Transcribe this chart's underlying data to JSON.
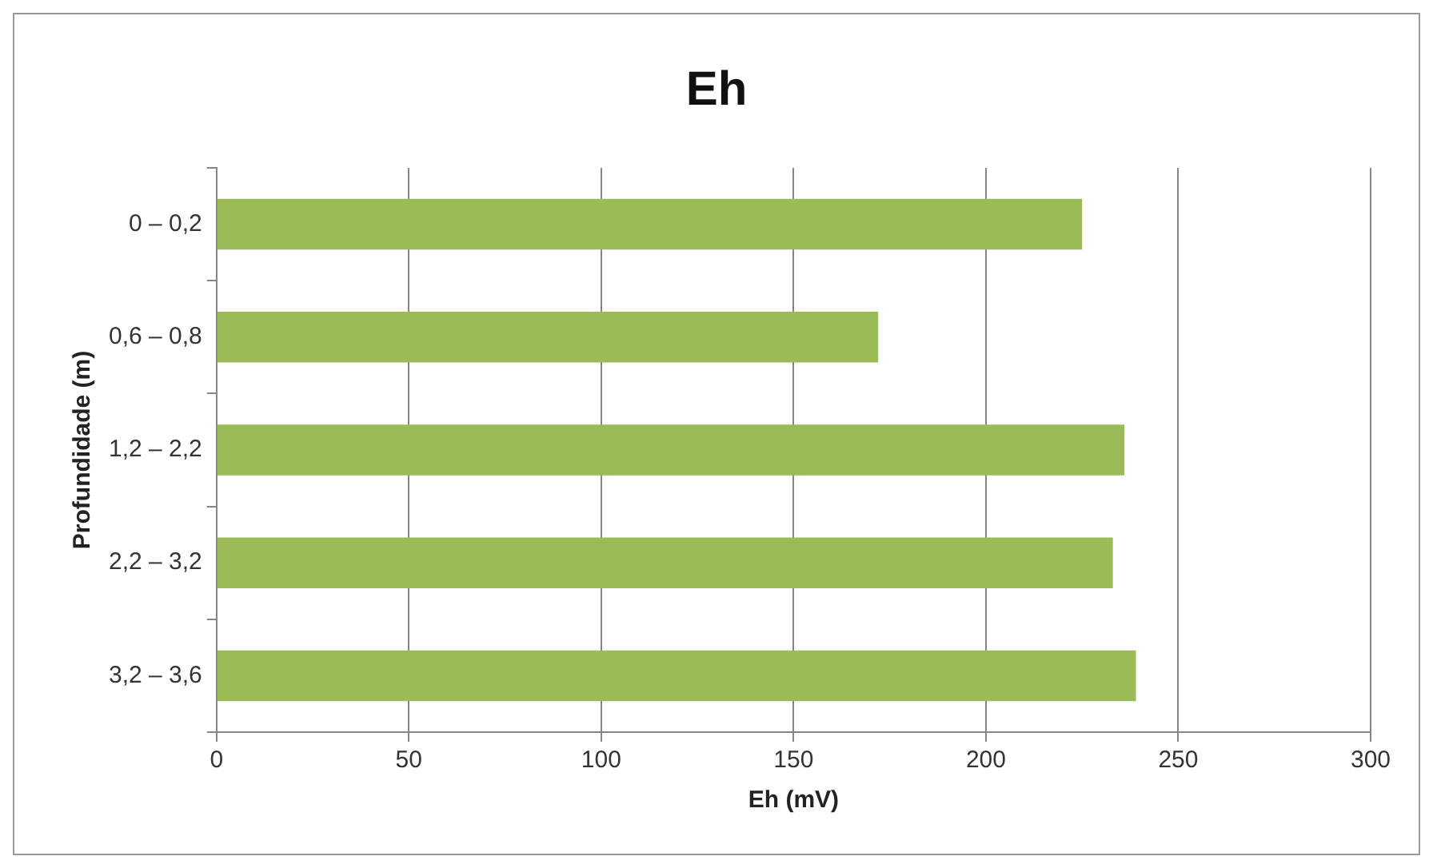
{
  "chart_data": {
    "type": "bar",
    "orientation": "horizontal",
    "title": "Eh",
    "xlabel": "Eh (mV)",
    "ylabel": "Profundidade (m)",
    "categories": [
      "0 – 0,2",
      "0,6 – 0,8",
      "1,2 – 2,2",
      "2,2 – 3,2",
      "3,2 – 3,6"
    ],
    "values": [
      225,
      172,
      236,
      233,
      239
    ],
    "color": "#9bbb59",
    "xlim": [
      0,
      300
    ],
    "xticks": [
      0,
      50,
      100,
      150,
      200,
      250,
      300
    ],
    "grid": "x",
    "legend": false
  }
}
